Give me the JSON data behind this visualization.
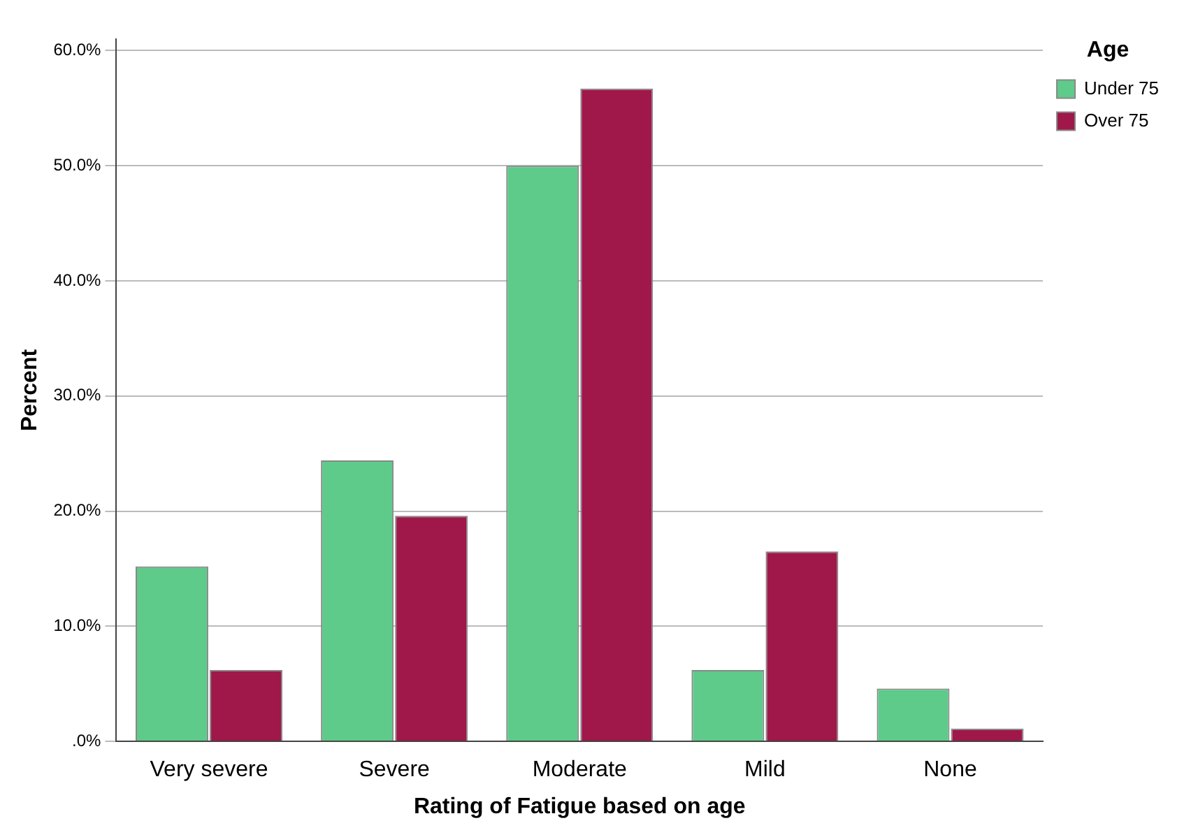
{
  "chart_data": {
    "type": "bar",
    "xlabel": "Rating of Fatigue based on age",
    "ylabel": "Percent",
    "legend_title": "Age",
    "legend": "top right",
    "grid": "y",
    "categories": [
      "Very severe",
      "Severe",
      "Moderate",
      "Mild",
      "None"
    ],
    "series": [
      {
        "name": "Under 75",
        "color": "#5ecb8a",
        "values": [
          15.2,
          24.4,
          50.0,
          6.2,
          4.6
        ]
      },
      {
        "name": "Over 75",
        "color": "#a0174a",
        "values": [
          6.2,
          19.6,
          56.7,
          16.5,
          1.1
        ]
      }
    ],
    "ylim": [
      0,
      61
    ],
    "yticks": [
      {
        "value": 0,
        "label": ".0%"
      },
      {
        "value": 10,
        "label": "10.0%"
      },
      {
        "value": 20,
        "label": "20.0%"
      },
      {
        "value": 30,
        "label": "30.0%"
      },
      {
        "value": 40,
        "label": "40.0%"
      },
      {
        "value": 50,
        "label": "50.0%"
      },
      {
        "value": 60,
        "label": "60.0%"
      }
    ]
  }
}
